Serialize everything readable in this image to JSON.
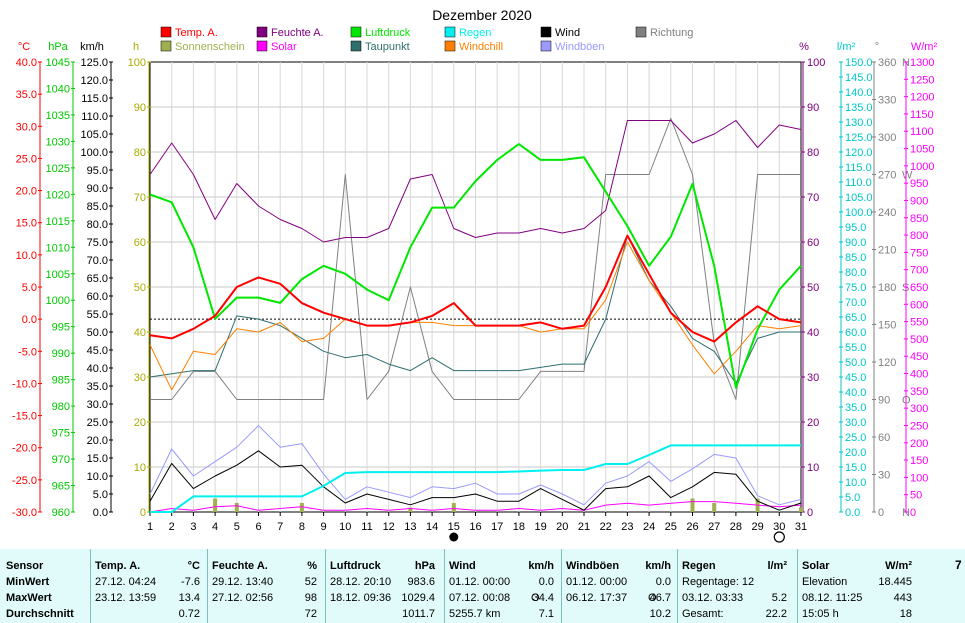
{
  "chart_data": {
    "type": "line",
    "title": "Dezember 2020",
    "x": [
      1,
      2,
      3,
      4,
      5,
      6,
      7,
      8,
      9,
      10,
      11,
      12,
      13,
      14,
      15,
      16,
      17,
      18,
      19,
      20,
      21,
      22,
      23,
      24,
      25,
      26,
      27,
      28,
      29,
      30,
      31
    ],
    "x_ticks": [
      "1",
      "2",
      "3",
      "4",
      "5",
      "6",
      "7",
      "8",
      "9",
      "10",
      "11",
      "12",
      "13",
      "14",
      "15",
      "16",
      "17",
      "18",
      "19",
      "20",
      "21",
      "22",
      "23",
      "24",
      "25",
      "26",
      "27",
      "28",
      "29",
      "30",
      "31"
    ],
    "axes": [
      {
        "id": "temp",
        "unit": "°C",
        "color": "#ff0000",
        "min": -30,
        "max": 40,
        "step": 5,
        "ticks": [
          "40.0",
          "35.0",
          "30.0",
          "25.0",
          "20.0",
          "15.0",
          "10.0",
          "5.0",
          "0.0",
          "-5.0",
          "-10.0",
          "-15.0",
          "-20.0",
          "-25.0",
          "-30.0"
        ]
      },
      {
        "id": "pressure",
        "unit": "hPa",
        "color": "#00c800",
        "min": 960,
        "max": 1045,
        "step": 5,
        "ticks": [
          "1045",
          "1040",
          "1035",
          "1030",
          "1025",
          "1020",
          "1015",
          "1010",
          "1005",
          "1000",
          "995",
          "990",
          "985",
          "980",
          "975",
          "970",
          "965",
          "960"
        ]
      },
      {
        "id": "wind",
        "unit": "km/h",
        "color": "#000000",
        "min": 0,
        "max": 125,
        "step": 5,
        "ticks": [
          "125.0",
          "120.0",
          "115.0",
          "110.0",
          "105.0",
          "100.0",
          "95.0",
          "90.0",
          "85.0",
          "80.0",
          "75.0",
          "70.0",
          "65.0",
          "60.0",
          "55.0",
          "50.0",
          "45.0",
          "40.0",
          "35.0",
          "30.0",
          "25.0",
          "20.0",
          "15.0",
          "10.0",
          "5.0",
          "0.0"
        ]
      },
      {
        "id": "sun",
        "unit": "h",
        "color": "#aaaa00",
        "min": 0,
        "max": 100,
        "step": 10,
        "ticks": [
          "100",
          "90",
          "80",
          "70",
          "60",
          "50",
          "40",
          "30",
          "20",
          "10",
          "0"
        ]
      },
      {
        "id": "humidity",
        "unit": "%",
        "color": "#800080",
        "min": 0,
        "max": 100,
        "step": 10,
        "ticks": [
          "100",
          "90",
          "80",
          "70",
          "60",
          "50",
          "40",
          "30",
          "20",
          "10",
          "0"
        ]
      },
      {
        "id": "rain",
        "unit": "l/m²",
        "color": "#00c8c8",
        "min": 0,
        "max": 150,
        "step": 5,
        "ticks": [
          "150.0",
          "145.0",
          "140.0",
          "135.0",
          "130.0",
          "125.0",
          "120.0",
          "115.0",
          "110.0",
          "105.0",
          "100.0",
          "95.0",
          "90.0",
          "85.0",
          "80.0",
          "75.0",
          "70.0",
          "65.0",
          "60.0",
          "55.0",
          "50.0",
          "45.0",
          "40.0",
          "35.0",
          "30.0",
          "25.0",
          "20.0",
          "15.0",
          "10.0",
          "5.0",
          "0.0"
        ]
      },
      {
        "id": "direction",
        "unit": "°",
        "color": "#808080",
        "min": 0,
        "max": 360,
        "step": 30,
        "ticks": [
          "360",
          "330",
          "300",
          "270",
          "240",
          "210",
          "180",
          "150",
          "120",
          "90",
          "60",
          "30",
          "0"
        ],
        "compass": {
          "360": "N",
          "270": "W",
          "180": "S",
          "90": "O",
          "0": "N"
        }
      },
      {
        "id": "solar",
        "unit": "W/m²",
        "color": "#ff00ff",
        "min": 0,
        "max": 1300,
        "step": 50,
        "ticks": [
          "1300",
          "1250",
          "1200",
          "1150",
          "1100",
          "1050",
          "1000",
          "950",
          "900",
          "850",
          "800",
          "750",
          "700",
          "650",
          "600",
          "550",
          "500",
          "450",
          "400",
          "350",
          "300",
          "250",
          "200",
          "150",
          "100",
          "50",
          "0"
        ]
      }
    ],
    "series": [
      {
        "name": "Temp. A.",
        "axis": "temp",
        "color": "#ff0000",
        "width": 2,
        "values": [
          -2.5,
          -3,
          -1.5,
          0.5,
          5,
          6.5,
          5.5,
          2.5,
          1,
          0,
          -1,
          -1,
          -0.5,
          0.5,
          2.5,
          -1,
          -1,
          -1,
          -0.5,
          -1.5,
          -1,
          5,
          13,
          7,
          1,
          -2,
          -3.5,
          -0.5,
          2,
          0,
          -0.5
        ]
      },
      {
        "name": "Feuchte A.",
        "axis": "humidity",
        "color": "#800080",
        "width": 1,
        "values": [
          75,
          82,
          75,
          65,
          73,
          68,
          65,
          63,
          60,
          61,
          61,
          63,
          74,
          75,
          63,
          61,
          62,
          62,
          63,
          62,
          63,
          67,
          87,
          87,
          87,
          82,
          84,
          87,
          81,
          86,
          85
        ]
      },
      {
        "name": "Luftdruck",
        "axis": "pressure",
        "color": "#00e800",
        "width": 2,
        "values": [
          1020,
          1018.5,
          1010,
          996.5,
          1000.5,
          1000.5,
          999.5,
          1004,
          1006.5,
          1005,
          1002,
          1000,
          1010,
          1017.5,
          1017.5,
          1022.5,
          1026.5,
          1029.5,
          1026.5,
          1026.5,
          1027,
          1020.5,
          1014,
          1006.5,
          1012,
          1022,
          1006.5,
          983.5,
          994.5,
          1002,
          1006.5
        ]
      },
      {
        "name": "Taupunkt",
        "axis": "temp",
        "color": "#2f6f6f",
        "width": 1,
        "values": [
          -9,
          -8.5,
          -8,
          -8,
          0.5,
          0,
          -1,
          -3,
          -5,
          -6,
          -5.5,
          -7,
          -8,
          -6,
          -8,
          -8,
          -8,
          -8,
          -7.5,
          -7,
          -7,
          0,
          13,
          6,
          2,
          -3,
          -5,
          -10,
          -3,
          -2,
          -2
        ]
      },
      {
        "name": "Windchill",
        "axis": "temp",
        "color": "#ff8000",
        "width": 1,
        "values": [
          -4,
          -11,
          -5,
          -5.5,
          -1.5,
          -2,
          -0.5,
          -3.5,
          -3,
          0,
          -1,
          -1,
          -0.5,
          -0.5,
          -1,
          -1,
          -1,
          -1,
          -2,
          -1.5,
          -1.5,
          3,
          12,
          6,
          1,
          -4,
          -8.5,
          -5,
          -1,
          -1.5,
          -1
        ]
      },
      {
        "name": "Wind",
        "axis": "wind",
        "color": "#000000",
        "width": 1,
        "values": [
          3,
          13.5,
          6.5,
          10,
          13,
          17,
          12.5,
          13,
          7,
          2.5,
          5,
          3.5,
          2,
          4,
          4,
          5,
          3,
          3,
          6.5,
          3.5,
          0.5,
          6.5,
          7,
          10,
          4,
          7,
          11,
          10.5,
          3,
          0.5,
          2.5
        ]
      },
      {
        "name": "Windböen",
        "axis": "wind",
        "color": "#9a9aff",
        "width": 1,
        "values": [
          5,
          17.5,
          10,
          14,
          18,
          24,
          18,
          19,
          10.5,
          3.5,
          7,
          5.5,
          4,
          7,
          6.5,
          8,
          5,
          5,
          7.5,
          5,
          2,
          8,
          10,
          14,
          8.5,
          12,
          16,
          15,
          4.5,
          2,
          3.5
        ]
      },
      {
        "name": "Regen",
        "axis": "rain",
        "color": "#00f0f0",
        "width": 2,
        "values": [
          0,
          0,
          5.2,
          5.2,
          5.2,
          5.2,
          5.2,
          5.2,
          8.7,
          13,
          13.3,
          13.3,
          13.3,
          13.3,
          13.3,
          13.3,
          13.3,
          13.5,
          13.8,
          14,
          14,
          16,
          16,
          19,
          22.2,
          22.2,
          22.2,
          22.2,
          22.2,
          22.2,
          22.2
        ]
      },
      {
        "name": "Richtung",
        "axis": "direction",
        "color": "#808080",
        "width": 1,
        "values": [
          90,
          90,
          112.5,
          112.5,
          90,
          90,
          90,
          90,
          90,
          270,
          90,
          112.5,
          180,
          112.5,
          90,
          90,
          90,
          90,
          112.5,
          112.5,
          112.5,
          270,
          270,
          270,
          315,
          270,
          135,
          90,
          270,
          270,
          270
        ]
      },
      {
        "name": "Sonnenschein",
        "axis": "sun",
        "color": "#a0b050",
        "type": "bars",
        "values": [
          0,
          0,
          0,
          3,
          2,
          0,
          0,
          2,
          0,
          0,
          0,
          0,
          1,
          0,
          2,
          0,
          0,
          0,
          0,
          0,
          0,
          0,
          0,
          0,
          0,
          3,
          2,
          0,
          3,
          0,
          1
        ]
      },
      {
        "name": "Solar",
        "axis": "solar",
        "color": "#ff00ff",
        "width": 1,
        "values": [
          0,
          10,
          5,
          15,
          18,
          5,
          10,
          15,
          5,
          5,
          10,
          5,
          10,
          5,
          10,
          5,
          5,
          10,
          5,
          10,
          5,
          20,
          25,
          20,
          25,
          30,
          30,
          25,
          20,
          15,
          20
        ]
      }
    ],
    "reference_line": {
      "axis": "temp",
      "value": 0
    },
    "moon_phases": [
      {
        "x": 15,
        "phase": "new"
      },
      {
        "x": 30,
        "phase": "full"
      }
    ],
    "legend": {
      "placement": "top",
      "entries": [
        {
          "label": "Temp. A.",
          "color": "#ff0000"
        },
        {
          "label": "Feuchte A.",
          "color": "#800080"
        },
        {
          "label": "Luftdruck",
          "color": "#00e800"
        },
        {
          "label": "Regen",
          "color": "#00f0f0"
        },
        {
          "label": "Wind",
          "color": "#000000"
        },
        {
          "label": "Richtung",
          "color": "#808080"
        },
        {
          "label": "Sonnenschein",
          "color": "#a0b050"
        },
        {
          "label": "Solar",
          "color": "#ff00ff"
        },
        {
          "label": "Taupunkt",
          "color": "#2f6f6f"
        },
        {
          "label": "Windchill",
          "color": "#ff8000"
        },
        {
          "label": "Windböen",
          "color": "#9a9aff"
        }
      ]
    },
    "grid": true
  },
  "stats": {
    "sensor": {
      "title": "Sensor",
      "rows": [
        "MinWert",
        "MaxWert",
        "Durchschnitt"
      ]
    },
    "blocks": [
      {
        "title": "Temp. A.",
        "unit": "°C",
        "rows": [
          [
            "27.12.  04:24",
            "",
            "-7.6"
          ],
          [
            "23.12.  13:59",
            "",
            "13.4"
          ],
          [
            "",
            "",
            "0.72"
          ]
        ]
      },
      {
        "title": "Feuchte A.",
        "unit": "%",
        "rows": [
          [
            "29.12.  13:40",
            "",
            "52"
          ],
          [
            "27.12.  02:56",
            "",
            "98"
          ],
          [
            "",
            "",
            "72"
          ]
        ]
      },
      {
        "title": "Luftdruck",
        "unit": "hPa",
        "rows": [
          [
            "28.12.  20:10",
            "",
            "983.6"
          ],
          [
            "18.12.  09:36",
            "",
            "1029.4"
          ],
          [
            "",
            "",
            "1011.7"
          ]
        ]
      },
      {
        "title": "Wind",
        "unit": "km/h",
        "rows": [
          [
            "01.12.  00:00",
            "",
            "0.0"
          ],
          [
            "07.12.  00:08",
            "O",
            "34.4"
          ],
          [
            "5255.7 km",
            "",
            "7.1"
          ]
        ]
      },
      {
        "title": "Windböen",
        "unit": "km/h",
        "rows": [
          [
            "01.12.  00:00",
            "",
            "0.0"
          ],
          [
            "06.12.  17:37",
            "O",
            "46.7"
          ],
          [
            "",
            "",
            "10.2"
          ]
        ]
      },
      {
        "title": "Regen",
        "unit": "l/m²",
        "rows": [
          [
            "Regentage: 12",
            "",
            ""
          ],
          [
            "03.12.  03:33",
            "",
            "5.2"
          ],
          [
            "Gesamt:",
            "",
            "22.2"
          ]
        ]
      },
      {
        "title": "Solar",
        "unit": "W/m²",
        "rows": [
          [
            "Elevation",
            "",
            "18.445"
          ],
          [
            "08.12.  11:25",
            "",
            "443"
          ],
          [
            "15:05 h",
            "",
            "18"
          ]
        ]
      }
    ],
    "partial_label": "7"
  }
}
